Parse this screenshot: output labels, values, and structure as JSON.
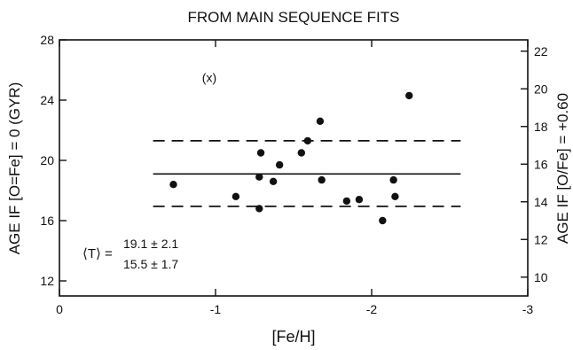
{
  "chart_data": {
    "type": "scatter",
    "title": "FROM MAIN SEQUENCE FITS",
    "xlabel": "[Fe/H]",
    "ylabel": "AGE IF [O=Fe] = 0 (GYR)",
    "y2label": "AGE IF [O/Fe] = +0.60",
    "xlim": [
      0,
      -3
    ],
    "ylim": [
      11,
      28
    ],
    "y2lim": [
      9,
      22.6
    ],
    "x_ticks": [
      0,
      -1,
      -2,
      -3
    ],
    "x_tick_labels": [
      "0",
      "-1",
      "-2",
      "-3"
    ],
    "y_ticks": [
      12,
      16,
      20,
      24,
      28
    ],
    "y_tick_labels": [
      "12",
      "16",
      "20",
      "24",
      "28"
    ],
    "y2_ticks": [
      10,
      12,
      14,
      16,
      18,
      20,
      22
    ],
    "y2_tick_labels": [
      "10",
      "12",
      "14",
      "16",
      "18",
      "20",
      "22"
    ],
    "grid": false,
    "points": [
      {
        "x": -0.73,
        "y": 18.4
      },
      {
        "x": -1.13,
        "y": 17.6
      },
      {
        "x": -1.28,
        "y": 18.9
      },
      {
        "x": -1.29,
        "y": 20.5
      },
      {
        "x": -1.28,
        "y": 16.8
      },
      {
        "x": -1.37,
        "y": 18.6
      },
      {
        "x": -1.41,
        "y": 19.7
      },
      {
        "x": -1.55,
        "y": 20.5
      },
      {
        "x": -1.59,
        "y": 21.3
      },
      {
        "x": -1.67,
        "y": 22.6
      },
      {
        "x": -1.68,
        "y": 18.7
      },
      {
        "x": -1.84,
        "y": 17.3
      },
      {
        "x": -1.92,
        "y": 17.4
      },
      {
        "x": -2.07,
        "y": 16.0
      },
      {
        "x": -2.14,
        "y": 18.7
      },
      {
        "x": -2.15,
        "y": 17.6
      },
      {
        "x": -2.24,
        "y": 24.3
      }
    ],
    "mean_line": {
      "y": 19.1,
      "x_range": [
        -0.6,
        -2.57
      ]
    },
    "sigma_lines": [
      {
        "y": 21.3,
        "x_range": [
          -0.6,
          -2.57
        ]
      },
      {
        "y": 16.95,
        "x_range": [
          -0.6,
          -2.57
        ]
      }
    ],
    "annotation_x": {
      "text": "(x)",
      "x": -0.96,
      "y": 25.5
    },
    "mean_annotation": {
      "label": "⟨T⟩ =",
      "value1": "19.1 ± 2.1",
      "value2": "15.5 ± 1.7"
    }
  }
}
